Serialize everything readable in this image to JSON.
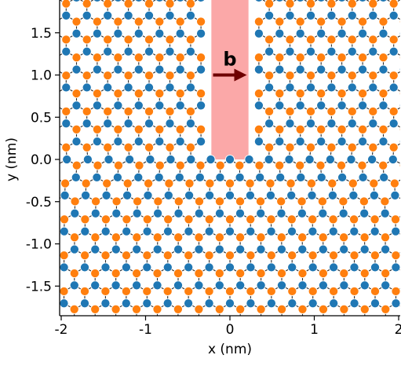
{
  "chart_data": {
    "type": "scatter",
    "xlabel": "x (nm)",
    "ylabel": "y (nm)",
    "xlim": [
      -2,
      2
    ],
    "ylim": [
      -1.85,
      1.9
    ],
    "xticks": [
      {
        "value": -2,
        "label": "-2"
      },
      {
        "value": -1,
        "label": "-1"
      },
      {
        "value": 0,
        "label": "0"
      },
      {
        "value": 1,
        "label": "1"
      },
      {
        "value": 2,
        "label": "2"
      }
    ],
    "yticks": [
      {
        "value": 1.5,
        "label": "1.5"
      },
      {
        "value": 1.0,
        "label": "1.0"
      },
      {
        "value": 0.5,
        "label": "0.5"
      },
      {
        "value": 0.0,
        "label": "0.0"
      },
      {
        "value": -0.5,
        "label": "-0.5"
      },
      {
        "value": -1.0,
        "label": "-1.0"
      },
      {
        "value": -1.5,
        "label": "-1.5"
      }
    ],
    "lattice": {
      "a": 0.142,
      "sublattice_colors": {
        "A": "#1f77b4",
        "B": "#ff7f0e"
      },
      "bond_color": "#2b2b2b",
      "atom_outline": "#ffffff"
    },
    "cut_region": {
      "x": [
        -0.22,
        0.22
      ],
      "y": [
        0.0,
        1.9
      ],
      "color": "#fba8a8"
    },
    "burgers_vector": {
      "label": "b",
      "from": [
        -0.2,
        1.0
      ],
      "to": [
        0.2,
        1.0
      ],
      "color": "#6e0000"
    }
  }
}
